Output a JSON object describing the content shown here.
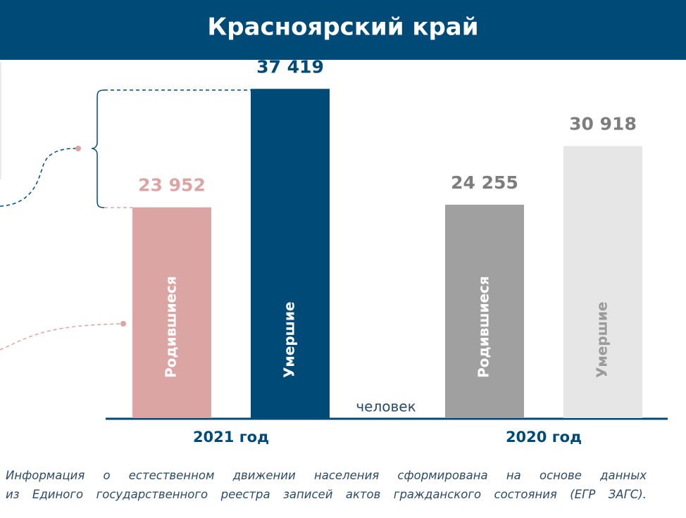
{
  "chart_data": {
    "type": "bar",
    "title": "Красноярский край",
    "unit_label": "человек",
    "categories": [
      "2021 год",
      "2020 год"
    ],
    "series": [
      {
        "name": "Родившиеся",
        "values": [
          23952,
          24255
        ],
        "value_labels": [
          "23 952",
          "24 255"
        ],
        "colors": [
          "#dba5a3",
          "#a0a0a0"
        ],
        "value_label_colors": [
          "#dba5a3",
          "#7d7d7d"
        ],
        "text_colors": [
          "#ffffff",
          "#ffffff"
        ]
      },
      {
        "name": "Умершие",
        "values": [
          37419,
          30918
        ],
        "value_labels": [
          "37 419",
          "30 918"
        ],
        "colors": [
          "#004a78",
          "#e6e6e6"
        ],
        "value_label_colors": [
          "#004a78",
          "#7d7d7d"
        ],
        "text_colors": [
          "#ffffff",
          "#9a9a9a"
        ]
      }
    ],
    "ylim": [
      0,
      40000
    ],
    "footnote": [
      "Информация о естественном движении населения сформирована на основе данных",
      "из Единого государственного реестра записей актов гражданского состояния (ЕГР ЗАГС)."
    ]
  }
}
